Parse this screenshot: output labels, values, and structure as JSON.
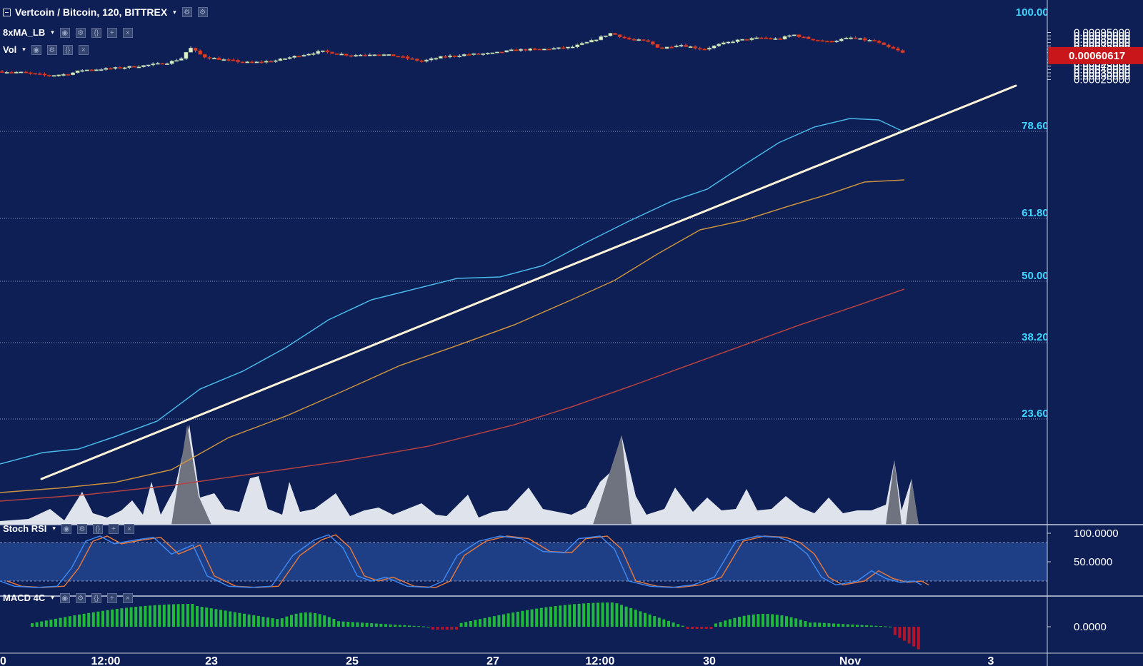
{
  "header": {
    "title": "Vertcoin / Bitcoin, 120, BITTREX",
    "indicators": [
      {
        "label": "8xMA_LB"
      },
      {
        "label": "Vol"
      }
    ]
  },
  "price_axis": {
    "ticks": [
      "0.00095000",
      "0.00090000",
      "0.00085000",
      "0.00080000",
      "0.00075000",
      "0.00070000",
      "0.00065000",
      "0.00055000",
      "0.00050000",
      "0.00045000",
      "0.00040000",
      "0.00035000",
      "0.00030000",
      "0.00025000"
    ],
    "current_price": "0.00060617"
  },
  "fib_levels": [
    {
      "label": "100.00%"
    },
    {
      "label": "78.60%"
    },
    {
      "label": "61.80%"
    },
    {
      "label": "50.00%"
    },
    {
      "label": "38.20%"
    },
    {
      "label": "23.60%"
    }
  ],
  "stoch_panel": {
    "label": "Stoch RSI",
    "ticks": [
      "100.0000",
      "50.0000"
    ]
  },
  "macd_panel": {
    "label": "MACD 4C",
    "ticks": [
      "0.0000"
    ]
  },
  "time_axis": {
    "labels": [
      "0",
      "12:00",
      "23",
      "25",
      "27",
      "12:00",
      "30",
      "Nov",
      "3"
    ]
  },
  "colors": {
    "background": "#0d1f55",
    "up_candle": "#dff3cf",
    "down_candle": "#d9402b",
    "ma_blue": "#48b8e8",
    "ma_orange": "#c9913f",
    "ma_red": "#b34141",
    "trendline": "#fff4d8",
    "fib_text": "#3fd7ff",
    "price_tag": "#c8161b",
    "stoch_k": "#3d86f0",
    "stoch_d": "#e0763f",
    "macd_up": "#25c93c",
    "macd_down": "#b3142a"
  }
}
